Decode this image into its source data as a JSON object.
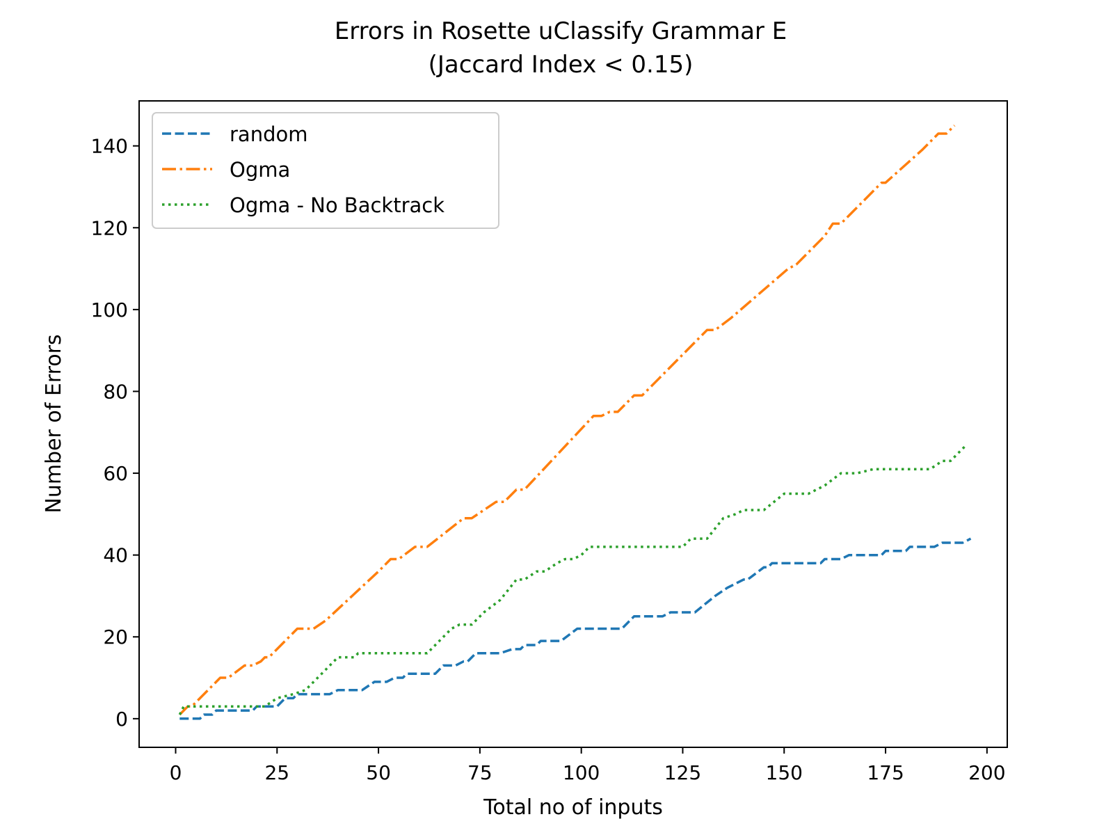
{
  "chart_data": {
    "type": "line",
    "title": "Errors in Rosette uClassify Grammar E",
    "subtitle": "(Jaccard Index < 0.15)",
    "xlabel": "Total no of inputs",
    "ylabel": "Number of Errors",
    "xlim": [
      -9,
      205
    ],
    "ylim": [
      -7,
      151
    ],
    "xticks": [
      0,
      25,
      50,
      75,
      100,
      125,
      150,
      175,
      200
    ],
    "yticks": [
      0,
      20,
      40,
      60,
      80,
      100,
      120,
      140
    ],
    "grid": false,
    "legend_position": "top-left",
    "series": [
      {
        "name": "random",
        "color": "#1f77b4",
        "style": "dashed",
        "points": [
          [
            1,
            0
          ],
          [
            6,
            0
          ],
          [
            7,
            1
          ],
          [
            9,
            1
          ],
          [
            10,
            2
          ],
          [
            19,
            2
          ],
          [
            20,
            3
          ],
          [
            25,
            3
          ],
          [
            27,
            5
          ],
          [
            29,
            5
          ],
          [
            30,
            6
          ],
          [
            38,
            6
          ],
          [
            40,
            7
          ],
          [
            46,
            7
          ],
          [
            49,
            9
          ],
          [
            52,
            9
          ],
          [
            54,
            10
          ],
          [
            56,
            10
          ],
          [
            57,
            11
          ],
          [
            64,
            11
          ],
          [
            66,
            13
          ],
          [
            69,
            13
          ],
          [
            71,
            14
          ],
          [
            72,
            14
          ],
          [
            74,
            16
          ],
          [
            80,
            16
          ],
          [
            83,
            17
          ],
          [
            85,
            17
          ],
          [
            86,
            18
          ],
          [
            89,
            18
          ],
          [
            90,
            19
          ],
          [
            95,
            19
          ],
          [
            99,
            22
          ],
          [
            110,
            22
          ],
          [
            113,
            25
          ],
          [
            120,
            25
          ],
          [
            122,
            26
          ],
          [
            128,
            26
          ],
          [
            133,
            30
          ],
          [
            136,
            32
          ],
          [
            140,
            34
          ],
          [
            141,
            34
          ],
          [
            145,
            37
          ],
          [
            146,
            37
          ],
          [
            147,
            38
          ],
          [
            159,
            38
          ],
          [
            160,
            39
          ],
          [
            164,
            39
          ],
          [
            166,
            40
          ],
          [
            174,
            40
          ],
          [
            175,
            41
          ],
          [
            180,
            41
          ],
          [
            181,
            42
          ],
          [
            187,
            42
          ],
          [
            189,
            43
          ],
          [
            194,
            43
          ],
          [
            196,
            44
          ]
        ]
      },
      {
        "name": "Ogma",
        "color": "#ff7f0e",
        "style": "dashdot",
        "points": [
          [
            1,
            1
          ],
          [
            3,
            3
          ],
          [
            4,
            3
          ],
          [
            11,
            10
          ],
          [
            13,
            10
          ],
          [
            17,
            13
          ],
          [
            19,
            13
          ],
          [
            21,
            14
          ],
          [
            22,
            15
          ],
          [
            23,
            15
          ],
          [
            30,
            22
          ],
          [
            34,
            22
          ],
          [
            37,
            24
          ],
          [
            50,
            36
          ],
          [
            53,
            39
          ],
          [
            55,
            39
          ],
          [
            59,
            42
          ],
          [
            62,
            42
          ],
          [
            71,
            49
          ],
          [
            73,
            49
          ],
          [
            79,
            53
          ],
          [
            81,
            53
          ],
          [
            84,
            56
          ],
          [
            86,
            56
          ],
          [
            103,
            74
          ],
          [
            105,
            74
          ],
          [
            107,
            75
          ],
          [
            109,
            75
          ],
          [
            113,
            79
          ],
          [
            115,
            79
          ],
          [
            119,
            83
          ],
          [
            131,
            95
          ],
          [
            133,
            95
          ],
          [
            137,
            98
          ],
          [
            151,
            110
          ],
          [
            153,
            111
          ],
          [
            160,
            118
          ],
          [
            162,
            121
          ],
          [
            164,
            121
          ],
          [
            166,
            123
          ],
          [
            169,
            126
          ],
          [
            174,
            131
          ],
          [
            175,
            131
          ],
          [
            184,
            139
          ],
          [
            188,
            143
          ],
          [
            190,
            143
          ],
          [
            192,
            145
          ]
        ]
      },
      {
        "name": "Ogma - No Backtrack",
        "color": "#2ca02c",
        "style": "dotted",
        "points": [
          [
            1,
            1
          ],
          [
            2,
            3
          ],
          [
            22,
            3
          ],
          [
            25,
            5
          ],
          [
            29,
            6
          ],
          [
            32,
            7
          ],
          [
            37,
            12
          ],
          [
            40,
            15
          ],
          [
            44,
            15
          ],
          [
            45,
            16
          ],
          [
            62,
            16
          ],
          [
            68,
            22
          ],
          [
            70,
            23
          ],
          [
            73,
            23
          ],
          [
            76,
            26
          ],
          [
            80,
            29
          ],
          [
            84,
            34
          ],
          [
            86,
            34
          ],
          [
            89,
            36
          ],
          [
            91,
            36
          ],
          [
            94,
            38
          ],
          [
            96,
            39
          ],
          [
            98,
            39
          ],
          [
            100,
            40
          ],
          [
            102,
            42
          ],
          [
            125,
            42
          ],
          [
            127,
            44
          ],
          [
            131,
            44
          ],
          [
            135,
            49
          ],
          [
            138,
            50
          ],
          [
            140,
            51
          ],
          [
            145,
            51
          ],
          [
            150,
            55
          ],
          [
            156,
            55
          ],
          [
            160,
            57
          ],
          [
            164,
            60
          ],
          [
            168,
            60
          ],
          [
            172,
            61
          ],
          [
            186,
            61
          ],
          [
            189,
            63
          ],
          [
            191,
            63
          ],
          [
            195,
            67
          ]
        ]
      }
    ]
  }
}
